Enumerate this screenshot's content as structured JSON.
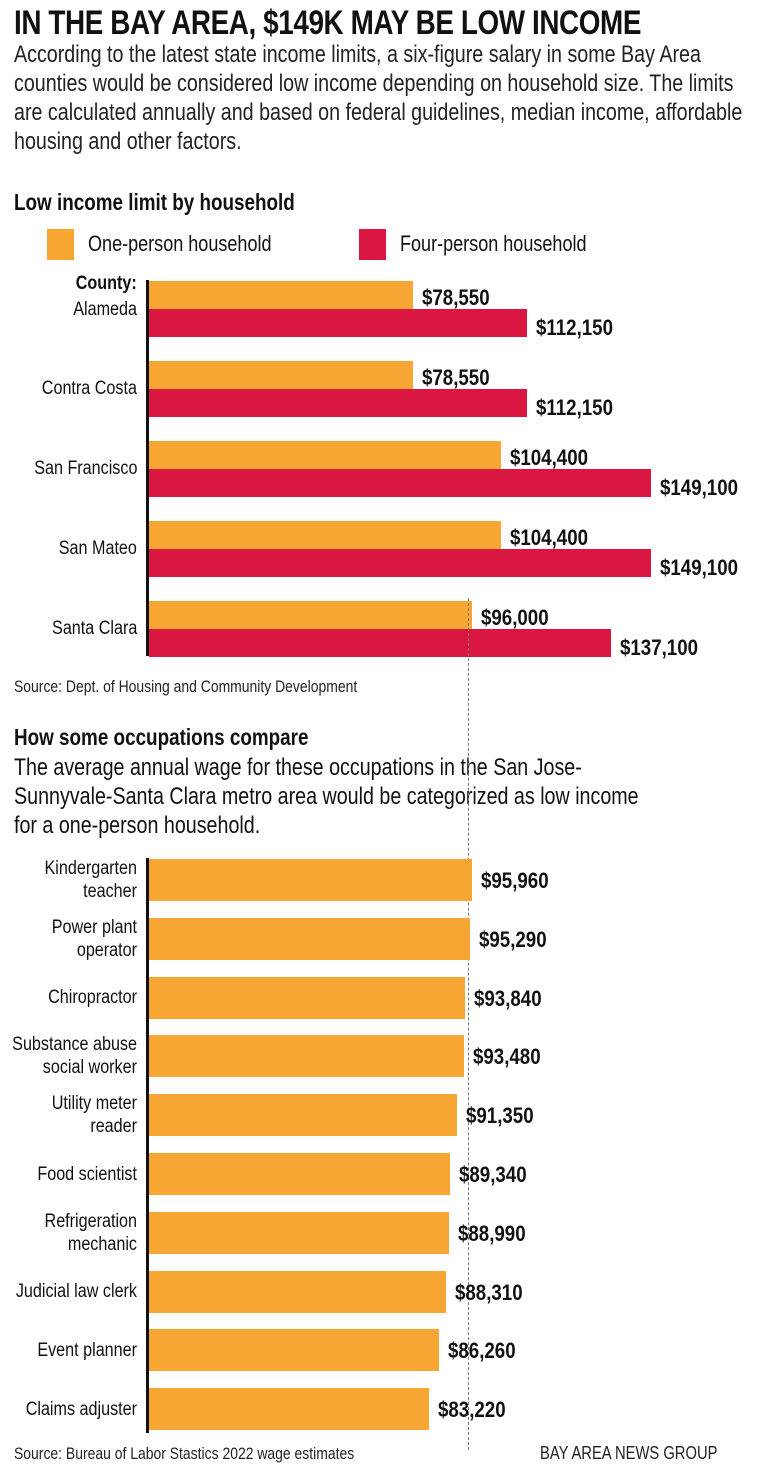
{
  "title": "IN THE BAY AREA, $149K MAY BE LOW INCOME",
  "intro": "According to the latest state income limits, a six-figure salary in some Bay Area counties would be considered low income depending on household size. The limits are calculated annually and based on federal guidelines, median income, affordable housing and other factors.",
  "colors": {
    "one_person": "#F7A533",
    "four_person": "#DA1740"
  },
  "chart_data": [
    {
      "type": "bar",
      "orientation": "horizontal",
      "title": "Low income limit by household",
      "category_header": "County:",
      "categories": [
        "Alameda",
        "Contra Costa",
        "San Francisco",
        "San Mateo",
        "Santa Clara"
      ],
      "series": [
        {
          "name": "One-person household",
          "values": [
            78550,
            78550,
            104400,
            104400,
            96000
          ],
          "labels": [
            "$78,550",
            "$78,550",
            "$104,400",
            "$104,400",
            "$96,000"
          ]
        },
        {
          "name": "Four-person household",
          "values": [
            112150,
            112150,
            149100,
            149100,
            137100
          ],
          "labels": [
            "$112,150",
            "$112,150",
            "$149,100",
            "$149,100",
            "$137,100"
          ]
        }
      ],
      "legend": "top",
      "source": "Source: Dept. of Housing and Community Development"
    },
    {
      "type": "bar",
      "orientation": "horizontal",
      "title": "How some occupations compare",
      "subtitle": "The average annual wage for these occupations in the San Jose-Sunnyvale-Santa Clara metro area would be categorized as low income for a one-person household.",
      "categories": [
        "Kindergarten teacher",
        "Power plant operator",
        "Chiropractor",
        "Substance abuse social worker",
        "Utility meter reader",
        "Food scientist",
        "Refrigeration mechanic",
        "Judicial law clerk",
        "Event planner",
        "Claims adjuster"
      ],
      "values": [
        95960,
        95290,
        93840,
        93480,
        91350,
        89340,
        88990,
        88310,
        86260,
        83220
      ],
      "labels": [
        "$95,960",
        "$95,290",
        "$93,840",
        "$93,480",
        "$91,350",
        "$89,340",
        "$88,990",
        "$88,310",
        "$86,260",
        "$83,220"
      ],
      "reference_line": 96000,
      "source": "Source: Bureau of Labor Stastics 2022 wage estimates"
    }
  ],
  "credit": "BAY AREA NEWS GROUP"
}
